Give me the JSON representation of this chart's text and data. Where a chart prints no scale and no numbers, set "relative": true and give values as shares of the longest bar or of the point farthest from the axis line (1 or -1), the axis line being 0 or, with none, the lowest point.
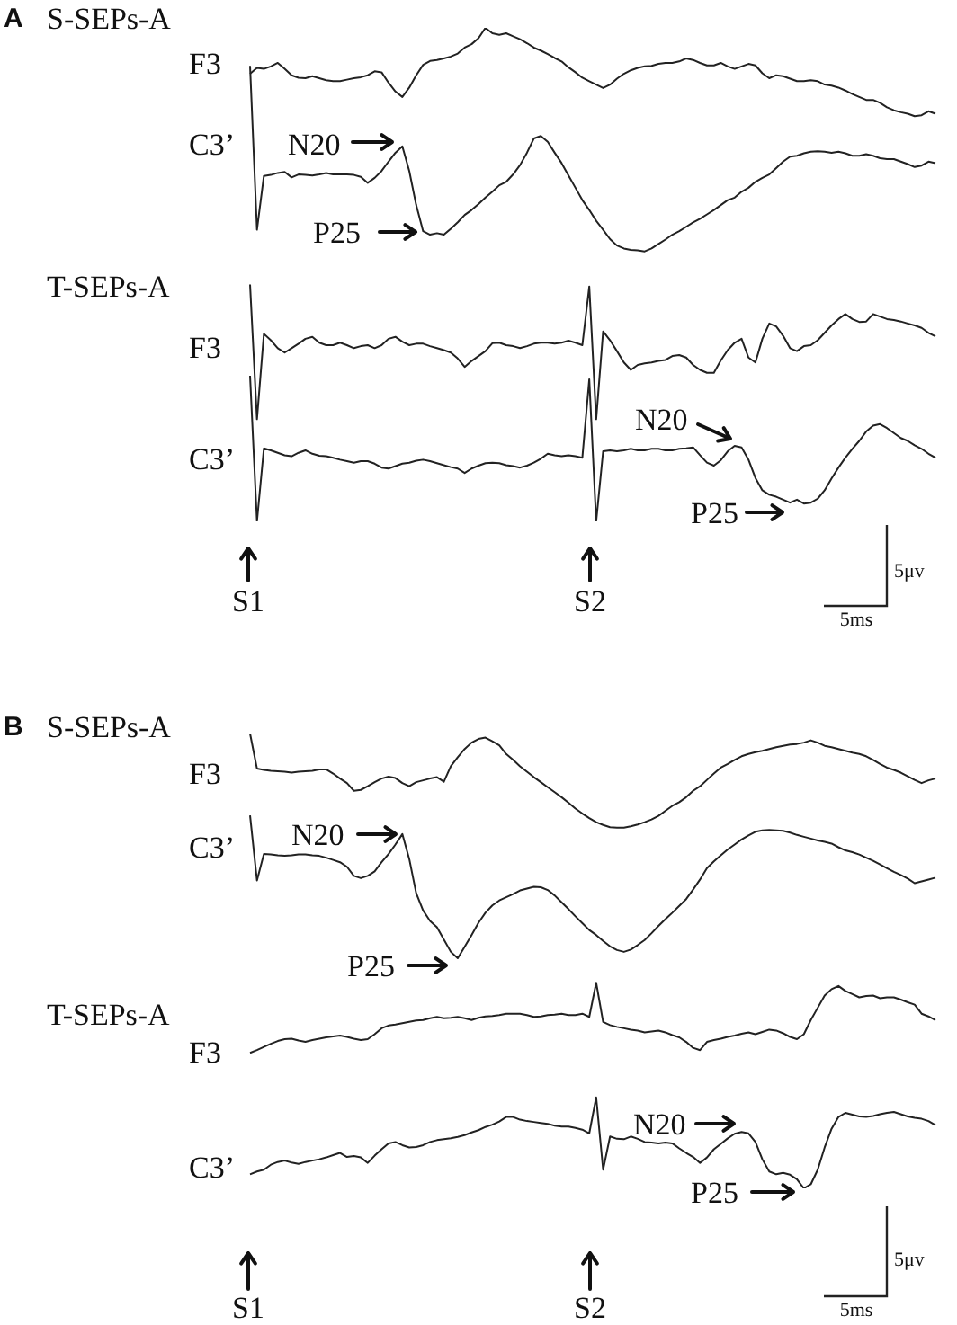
{
  "chart_data": [
    {
      "type": "line",
      "relative": true,
      "marker": "none",
      "categories": [
        null,
        null,
        null,
        null,
        null,
        null,
        null,
        null,
        null,
        null,
        null,
        null,
        null,
        null,
        null,
        null,
        null,
        null,
        null,
        null,
        null,
        null,
        null,
        null,
        null,
        null,
        null,
        null,
        null,
        null,
        null,
        null,
        null,
        null,
        null,
        null,
        null,
        null,
        null,
        null,
        null,
        null,
        null,
        null,
        null,
        null,
        null,
        null,
        null,
        null,
        null,
        null,
        null,
        null,
        null,
        null,
        null,
        null,
        null,
        null,
        null,
        null,
        null,
        null,
        null,
        null,
        null,
        null,
        null,
        null,
        null,
        null,
        null,
        null,
        null,
        null,
        null,
        null,
        null,
        null,
        null,
        null,
        null,
        null,
        null,
        null,
        null,
        null,
        null,
        null,
        null,
        null,
        null,
        null,
        null,
        null,
        null,
        null,
        null,
        null
      ],
      "series": [
        {
          "name": "F3",
          "color": "#222222",
          "values": [
            0.907,
            0.919,
            0.917,
            0.922,
            0.929,
            0.917,
            0.904,
            0.899,
            0.898,
            0.902,
            0.898,
            0.894,
            0.892,
            0.892,
            0.895,
            0.898,
            0.9,
            0.904,
            0.912,
            0.91,
            0.889,
            0.871,
            0.86,
            0.879,
            0.904,
            0.925,
            0.933,
            0.935,
            0.938,
            0.942,
            0.948,
            0.96,
            0.967,
            0.979,
            1,
            0.989,
            0.986,
            0.989,
            0.983,
            0.977,
            0.969,
            0.96,
            0.954,
            0.947,
            0.939,
            0.932,
            0.92,
            0.91,
            0.899,
            0.892,
            0.885,
            0.878,
            0.885,
            0.897,
            0.907,
            0.914,
            0.919,
            0.922,
            0.923,
            0.927,
            0.929,
            0.929,
            0.932,
            0.938,
            0.935,
            0.929,
            0.924,
            0.924,
            0.929,
            0.922,
            0.917,
            0.922,
            0.927,
            0.924,
            0.908,
            0.898,
            0.904,
            0.902,
            0.897,
            0.892,
            0.892,
            0.894,
            0.892,
            0.885,
            0.883,
            0.879,
            0.873,
            0.866,
            0.86,
            0.854,
            0.854,
            0.848,
            0.839,
            0.833,
            0.829,
            0.826,
            0.821,
            0.823,
            0.831,
            0.826
          ]
        },
        {
          "name": "C3’",
          "color": "#222222",
          "values": [
            0.923,
            0.591,
            0.7,
            0.702,
            0.706,
            0.708,
            0.697,
            0.703,
            0.702,
            0.701,
            0.703,
            0.706,
            0.703,
            0.703,
            0.703,
            0.702,
            0.698,
            0.686,
            0.696,
            0.71,
            0.729,
            0.747,
            0.76,
            0.71,
            0.641,
            0.588,
            0.581,
            0.584,
            0.581,
            0.593,
            0.606,
            0.621,
            0.631,
            0.643,
            0.656,
            0.668,
            0.681,
            0.688,
            0.703,
            0.722,
            0.747,
            0.776,
            0.781,
            0.769,
            0.747,
            0.726,
            0.701,
            0.676,
            0.651,
            0.631,
            0.609,
            0.591,
            0.572,
            0.559,
            0.553,
            0.55,
            0.549,
            0.547,
            0.553,
            0.562,
            0.571,
            0.581,
            0.588,
            0.597,
            0.606,
            0.613,
            0.622,
            0.631,
            0.641,
            0.651,
            0.656,
            0.668,
            0.676,
            0.688,
            0.696,
            0.703,
            0.716,
            0.729,
            0.739,
            0.741,
            0.746,
            0.749,
            0.75,
            0.749,
            0.747,
            0.749,
            0.746,
            0.741,
            0.741,
            0.744,
            0.741,
            0.736,
            0.734,
            0.734,
            0.729,
            0.724,
            0.718,
            0.721,
            0.729,
            0.726
          ]
        },
        {
          "name": "F3",
          "color": "#222222",
          "values": [
            0.48,
            0.207,
            0.38,
            0.367,
            0.351,
            0.342,
            0.351,
            0.36,
            0.37,
            0.374,
            0.362,
            0.357,
            0.357,
            0.362,
            0.357,
            0.351,
            0.355,
            0.357,
            0.351,
            0.357,
            0.37,
            0.374,
            0.364,
            0.357,
            0.36,
            0.36,
            0.355,
            0.351,
            0.347,
            0.342,
            0.33,
            0.313,
            0.325,
            0.335,
            0.345,
            0.361,
            0.362,
            0.357,
            0.355,
            0.351,
            0.355,
            0.36,
            0.362,
            0.362,
            0.36,
            0.362,
            0.366,
            0.362,
            0.357,
            0.476,
            0.207,
            0.385,
            0.367,
            0.345,
            0.322,
            0.307,
            0.317,
            0.32,
            0.322,
            0.325,
            0.327,
            0.335,
            0.337,
            0.332,
            0.317,
            0.307,
            0.301,
            0.301,
            0.326,
            0.347,
            0.362,
            0.37,
            0.332,
            0.322,
            0.37,
            0.401,
            0.395,
            0.376,
            0.351,
            0.345,
            0.355,
            0.357,
            0.367,
            0.382,
            0.397,
            0.41,
            0.42,
            0.41,
            0.404,
            0.405,
            0.42,
            0.415,
            0.41,
            0.408,
            0.405,
            0.401,
            0.397,
            0.392,
            0.382,
            0.375
          ]
        },
        {
          "name": "C3’",
          "color": "#222222",
          "values": [
            0.295,
            0,
            0.148,
            0.144,
            0.139,
            0.134,
            0.132,
            0.139,
            0.144,
            0.137,
            0.133,
            0.132,
            0.129,
            0.125,
            0.122,
            0.119,
            0.122,
            0.122,
            0.117,
            0.109,
            0.107,
            0.112,
            0.117,
            0.119,
            0.123,
            0.125,
            0.122,
            0.118,
            0.114,
            0.11,
            0.107,
            0.098,
            0.107,
            0.113,
            0.118,
            0.119,
            0.118,
            0.114,
            0.112,
            0.109,
            0.113,
            0.119,
            0.127,
            0.137,
            0.134,
            0.132,
            0.134,
            0.132,
            0.129,
            0.288,
            0,
            0.142,
            0.144,
            0.142,
            0.144,
            0.147,
            0.144,
            0.144,
            0.147,
            0.147,
            0.144,
            0.144,
            0.147,
            0.148,
            0.15,
            0.134,
            0.119,
            0.113,
            0.124,
            0.142,
            0.153,
            0.15,
            0.125,
            0.088,
            0.063,
            0.054,
            0.05,
            0.044,
            0.038,
            0.044,
            0.036,
            0.038,
            0.046,
            0.063,
            0.087,
            0.109,
            0.129,
            0.147,
            0.163,
            0.182,
            0.194,
            0.197,
            0.189,
            0.179,
            0.169,
            0.163,
            0.154,
            0.147,
            0.137,
            0.129
          ]
        }
      ],
      "annotations": [
        "A",
        "S-SEPs-A",
        "T-SEPs-A",
        "N20",
        "P25",
        "N20",
        "P25",
        "S1",
        "S2",
        "5μv",
        "5ms"
      ]
    },
    {
      "type": "line",
      "relative": true,
      "marker": "none",
      "categories": [
        null,
        null,
        null,
        null,
        null,
        null,
        null,
        null,
        null,
        null,
        null,
        null,
        null,
        null,
        null,
        null,
        null,
        null,
        null,
        null,
        null,
        null,
        null,
        null,
        null,
        null,
        null,
        null,
        null,
        null,
        null,
        null,
        null,
        null,
        null,
        null,
        null,
        null,
        null,
        null,
        null,
        null,
        null,
        null,
        null,
        null,
        null,
        null,
        null,
        null,
        null,
        null,
        null,
        null,
        null,
        null,
        null,
        null,
        null,
        null,
        null,
        null,
        null,
        null,
        null,
        null,
        null,
        null,
        null,
        null,
        null,
        null,
        null,
        null,
        null,
        null,
        null,
        null,
        null,
        null,
        null,
        null,
        null,
        null,
        null,
        null,
        null,
        null,
        null,
        null,
        null,
        null,
        null,
        null,
        null,
        null,
        null,
        null,
        null,
        null
      ],
      "series": [
        {
          "name": "F3",
          "color": "#222222",
          "values": [
            1,
            0.923,
            0.92,
            0.918,
            0.917,
            0.916,
            0.914,
            0.916,
            0.917,
            0.918,
            0.921,
            0.921,
            0.912,
            0.901,
            0.891,
            0.874,
            0.876,
            0.884,
            0.893,
            0.901,
            0.905,
            0.902,
            0.891,
            0.884,
            0.893,
            0.897,
            0.901,
            0.904,
            0.894,
            0.928,
            0.948,
            0.966,
            0.98,
            0.988,
            0.991,
            0.983,
            0.974,
            0.955,
            0.942,
            0.928,
            0.916,
            0.904,
            0.893,
            0.882,
            0.871,
            0.86,
            0.848,
            0.835,
            0.824,
            0.814,
            0.805,
            0.799,
            0.794,
            0.793,
            0.793,
            0.796,
            0.8,
            0.805,
            0.811,
            0.819,
            0.83,
            0.841,
            0.849,
            0.86,
            0.874,
            0.884,
            0.898,
            0.912,
            0.925,
            0.933,
            0.942,
            0.95,
            0.955,
            0.959,
            0.962,
            0.966,
            0.97,
            0.973,
            0.976,
            0.977,
            0.98,
            0.985,
            0.98,
            0.973,
            0.97,
            0.966,
            0.962,
            0.958,
            0.955,
            0.95,
            0.942,
            0.933,
            0.925,
            0.92,
            0.914,
            0.906,
            0.898,
            0.891,
            0.897,
            0.901
          ]
        },
        {
          "name": "C3’",
          "color": "#222222",
          "values": [
            0.82,
            0.677,
            0.735,
            0.734,
            0.732,
            0.731,
            0.732,
            0.734,
            0.734,
            0.732,
            0.731,
            0.727,
            0.722,
            0.717,
            0.707,
            0.687,
            0.682,
            0.687,
            0.697,
            0.717,
            0.735,
            0.756,
            0.779,
            0.724,
            0.649,
            0.611,
            0.588,
            0.574,
            0.547,
            0.52,
            0.506,
            0.531,
            0.557,
            0.584,
            0.606,
            0.622,
            0.633,
            0.64,
            0.647,
            0.655,
            0.659,
            0.663,
            0.662,
            0.656,
            0.644,
            0.629,
            0.614,
            0.598,
            0.583,
            0.568,
            0.557,
            0.544,
            0.532,
            0.524,
            0.52,
            0.525,
            0.535,
            0.546,
            0.561,
            0.577,
            0.592,
            0.606,
            0.621,
            0.636,
            0.657,
            0.679,
            0.704,
            0.719,
            0.732,
            0.745,
            0.756,
            0.767,
            0.776,
            0.784,
            0.787,
            0.788,
            0.787,
            0.786,
            0.782,
            0.777,
            0.773,
            0.769,
            0.765,
            0.762,
            0.758,
            0.75,
            0.743,
            0.739,
            0.734,
            0.727,
            0.72,
            0.712,
            0.704,
            0.696,
            0.689,
            0.681,
            0.671,
            0.675,
            0.679,
            0.683
          ]
        },
        {
          "name": "F3",
          "color": "#222222",
          "values": [
            0.298,
            0.304,
            0.311,
            0.318,
            0.324,
            0.328,
            0.329,
            0.325,
            0.322,
            0.326,
            0.329,
            0.332,
            0.334,
            0.336,
            0.333,
            0.329,
            0.326,
            0.328,
            0.339,
            0.352,
            0.358,
            0.36,
            0.363,
            0.366,
            0.369,
            0.37,
            0.374,
            0.377,
            0.374,
            0.375,
            0.377,
            0.374,
            0.37,
            0.375,
            0.378,
            0.379,
            0.381,
            0.384,
            0.384,
            0.384,
            0.381,
            0.377,
            0.378,
            0.381,
            0.382,
            0.384,
            0.381,
            0.381,
            0.384,
            0.377,
            0.452,
            0.366,
            0.359,
            0.355,
            0.352,
            0.349,
            0.347,
            0.343,
            0.345,
            0.347,
            0.343,
            0.337,
            0.332,
            0.322,
            0.309,
            0.304,
            0.322,
            0.326,
            0.329,
            0.333,
            0.336,
            0.34,
            0.343,
            0.339,
            0.344,
            0.349,
            0.347,
            0.341,
            0.333,
            0.328,
            0.339,
            0.37,
            0.397,
            0.424,
            0.438,
            0.445,
            0.434,
            0.427,
            0.42,
            0.423,
            0.424,
            0.418,
            0.42,
            0.42,
            0.415,
            0.409,
            0.404,
            0.384,
            0.378,
            0.37
          ]
        },
        {
          "name": "C3’",
          "color": "#222222",
          "values": [
            0.031,
            0.037,
            0.041,
            0.052,
            0.058,
            0.061,
            0.057,
            0.054,
            0.058,
            0.061,
            0.064,
            0.068,
            0.073,
            0.078,
            0.069,
            0.071,
            0.068,
            0.056,
            0.072,
            0.086,
            0.099,
            0.102,
            0.095,
            0.09,
            0.091,
            0.095,
            0.102,
            0.106,
            0.108,
            0.11,
            0.113,
            0.117,
            0.123,
            0.128,
            0.135,
            0.14,
            0.147,
            0.157,
            0.157,
            0.151,
            0.148,
            0.146,
            0.144,
            0.142,
            0.138,
            0.136,
            0.136,
            0.133,
            0.129,
            0.121,
            0.2,
            0.041,
            0.114,
            0.109,
            0.108,
            0.114,
            0.109,
            0.102,
            0.101,
            0.099,
            0.101,
            0.099,
            0.088,
            0.078,
            0.069,
            0.056,
            0.068,
            0.086,
            0.098,
            0.11,
            0.12,
            0.124,
            0.121,
            0.102,
            0.064,
            0.037,
            0.031,
            0.034,
            0.03,
            0.02,
            0,
            0.009,
            0.041,
            0.09,
            0.131,
            0.157,
            0.166,
            0.162,
            0.158,
            0.157,
            0.159,
            0.163,
            0.166,
            0.168,
            0.163,
            0.158,
            0.155,
            0.153,
            0.148,
            0.139
          ]
        }
      ],
      "annotations": [
        "B",
        "S-SEPs-A",
        "T-SEPs-A",
        "N20",
        "P25",
        "N20",
        "P25",
        "S1",
        "S2",
        "5μv",
        "5ms"
      ]
    }
  ]
}
